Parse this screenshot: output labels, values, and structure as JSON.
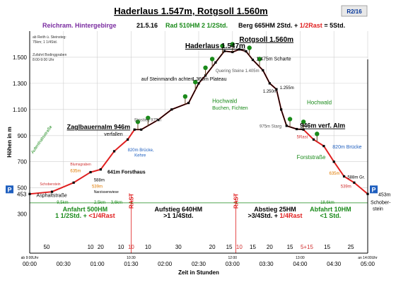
{
  "header": {
    "title": "Haderlaus 1.547m, Rotgsoll 1.560m",
    "badge": "R2/16",
    "sub_left": "Reichram. Hintergebirge",
    "sub_date": "21.5.16",
    "sub_rad": "Rad 510HM 2 1/2Std.",
    "sub_berg": "Berg 665HM  2Std. + ",
    "sub_rast": "1/2Rast",
    "sub_total": " = 5Std.",
    "note1": "ab Reith ü. Steinsteg:",
    "note2": "75km; 1 1/4Std.",
    "note3": "Zufahrt Bodinggraben",
    "note4": "8:00-9:00 Uhr"
  },
  "chart_data": {
    "type": "area",
    "ylabel": "Höhen in m",
    "xlabel": "Zeit in Stunden",
    "ylim": [
      0,
      1700
    ],
    "xlim": [
      0,
      5
    ],
    "grid": true,
    "y_ticks": [
      "300",
      "500",
      "700",
      "900",
      "1.100",
      "1.300",
      "1.500"
    ],
    "y_tick_values": [
      300,
      500,
      700,
      900,
      1100,
      1300,
      1500
    ],
    "x_ticks": [
      "00:00",
      "00:30",
      "01:00",
      "01:30",
      "02:00",
      "02:30",
      "03:00",
      "03:30",
      "04:00",
      "04:30",
      "05:00"
    ],
    "profile": [
      {
        "t": 0.0,
        "h": 453
      },
      {
        "t": 0.33,
        "h": 470
      },
      {
        "t": 0.65,
        "h": 540
      },
      {
        "t": 0.9,
        "h": 620
      },
      {
        "t": 1.05,
        "h": 641
      },
      {
        "t": 1.25,
        "h": 780
      },
      {
        "t": 1.45,
        "h": 870
      },
      {
        "t": 1.55,
        "h": 946
      },
      {
        "t": 1.65,
        "h": 946
      },
      {
        "t": 1.9,
        "h": 1020
      },
      {
        "t": 2.1,
        "h": 1100
      },
      {
        "t": 2.35,
        "h": 1150
      },
      {
        "t": 2.5,
        "h": 1300
      },
      {
        "t": 2.6,
        "h": 1360
      },
      {
        "t": 2.75,
        "h": 1460
      },
      {
        "t": 2.88,
        "h": 1547
      },
      {
        "t": 3.0,
        "h": 1540
      },
      {
        "t": 3.1,
        "h": 1560
      },
      {
        "t": 3.2,
        "h": 1545
      },
      {
        "t": 3.3,
        "h": 1480
      },
      {
        "t": 3.45,
        "h": 1400
      },
      {
        "t": 3.55,
        "h": 1300
      },
      {
        "t": 3.65,
        "h": 1255
      },
      {
        "t": 3.72,
        "h": 1100
      },
      {
        "t": 3.8,
        "h": 975
      },
      {
        "t": 3.95,
        "h": 950
      },
      {
        "t": 4.05,
        "h": 946
      },
      {
        "t": 4.2,
        "h": 870
      },
      {
        "t": 4.35,
        "h": 820
      },
      {
        "t": 4.5,
        "h": 700
      },
      {
        "t": 4.65,
        "h": 588
      },
      {
        "t": 4.8,
        "h": 540
      },
      {
        "t": 5.0,
        "h": 453
      }
    ],
    "annotations": [
      {
        "t": 2.3,
        "h": 1570,
        "text": "Haderlaus 1.547m",
        "color": "#000000",
        "size": 10,
        "bold": true,
        "underline": true
      },
      {
        "t": 3.1,
        "h": 1620,
        "text": "Rotgsoll 1.560m",
        "color": "#000000",
        "size": 10,
        "bold": true,
        "underline": true
      },
      {
        "t": 3.35,
        "h": 1475,
        "text": "1.475m Scharte",
        "color": "#000000",
        "size": 7
      },
      {
        "t": 2.75,
        "h": 1385,
        "text": "Quering Steine 1.405m",
        "color": "#555555",
        "size": 6
      },
      {
        "t": 2.4,
        "h": 1320,
        "text": "1.360m Plateau",
        "color": "#000000",
        "size": 7
      },
      {
        "t": 1.65,
        "h": 1320,
        "text": "auf Steinmandln achten",
        "color": "#000000",
        "size": 7
      },
      {
        "t": 3.7,
        "h": 1255,
        "text": "1.255m",
        "color": "#000000",
        "size": 6
      },
      {
        "t": 3.45,
        "h": 1230,
        "text": "1.250m",
        "color": "#000000",
        "size": 6
      },
      {
        "t": 2.7,
        "h": 1150,
        "text": "Hochwald",
        "color": "#1a8a1a",
        "size": 8
      },
      {
        "t": 2.7,
        "h": 1100,
        "text": "Buchen, Fichten",
        "color": "#1a8a1a",
        "size": 7
      },
      {
        "t": 4.1,
        "h": 1140,
        "text": "Hochwald",
        "color": "#1a8a1a",
        "size": 8
      },
      {
        "t": 1.55,
        "h": 1010,
        "text": "Einstieg 975m",
        "color": "#555555",
        "size": 6
      },
      {
        "t": 3.4,
        "h": 960,
        "text": "975m Starg",
        "color": "#555555",
        "size": 6
      },
      {
        "t": 0.55,
        "h": 950,
        "text": "Zaglbauernalm 946m",
        "color": "#000000",
        "size": 9,
        "bold": true,
        "underline": true
      },
      {
        "t": 1.1,
        "h": 900,
        "text": "verfallen",
        "color": "#000000",
        "size": 7
      },
      {
        "t": 4.0,
        "h": 960,
        "text": "946m verf. Alm",
        "color": "#000000",
        "size": 9,
        "bold": true,
        "underline": true
      },
      {
        "t": 1.45,
        "h": 780,
        "text": "820m Brücke,",
        "color": "#1f5fbf",
        "size": 6
      },
      {
        "t": 1.55,
        "h": 740,
        "text": "Kehre",
        "color": "#1f5fbf",
        "size": 6
      },
      {
        "t": 4.48,
        "h": 800,
        "text": "820m Brücke",
        "color": "#1f5fbf",
        "size": 7
      },
      {
        "t": 1.15,
        "h": 610,
        "text": "641m Forsthaus",
        "color": "#000000",
        "size": 7,
        "bold": true
      },
      {
        "t": 3.95,
        "h": 720,
        "text": "Forststraße",
        "color": "#1a8a1a",
        "size": 8
      },
      {
        "t": 4.7,
        "h": 570,
        "text": "588m Gr.",
        "color": "#000000",
        "size": 6
      },
      {
        "t": 4.43,
        "h": 600,
        "text": "635m",
        "color": "#e07a00",
        "size": 6
      },
      {
        "t": 0.05,
        "h": 760,
        "text": "Aufenthaltsstraße",
        "color": "#1a8a1a",
        "size": 6,
        "rot": -55
      },
      {
        "t": 0.6,
        "h": 670,
        "text": "Blumsgraben",
        "color": "#d03030",
        "size": 5
      },
      {
        "t": 0.6,
        "h": 620,
        "text": "635m",
        "color": "#e07a00",
        "size": 6
      },
      {
        "t": 0.95,
        "h": 550,
        "text": "588m",
        "color": "#000000",
        "size": 6
      },
      {
        "t": 0.92,
        "h": 500,
        "text": "539m",
        "color": "#e07a00",
        "size": 6
      },
      {
        "t": 0.95,
        "h": 460,
        "text": "Narzissenwiese",
        "color": "#000000",
        "size": 5
      },
      {
        "t": 0.15,
        "h": 520,
        "text": "Schoberstein",
        "color": "#d03030",
        "size": 5
      },
      {
        "t": 0.1,
        "h": 430,
        "text": "Asphaltstraße",
        "color": "#000000",
        "size": 7
      },
      {
        "t": 0.4,
        "h": 380,
        "text": "9,5km",
        "color": "#1a8a1a",
        "size": 6
      },
      {
        "t": 0.95,
        "h": 380,
        "text": "2,5km",
        "color": "#1a8a1a",
        "size": 6
      },
      {
        "t": 1.2,
        "h": 380,
        "text": "3,6km",
        "color": "#1a8a1a",
        "size": 6
      },
      {
        "t": 4.3,
        "h": 380,
        "text": "18,6km",
        "color": "#1a8a1a",
        "size": 6
      },
      {
        "t": 3.95,
        "h": 880,
        "text": "5Rast",
        "color": "#d03030",
        "size": 6
      },
      {
        "t": 4.6,
        "h": 500,
        "text": "539m",
        "color": "#d03030",
        "size": 6
      }
    ],
    "rast_labels": [
      {
        "t": 1.5,
        "text": "RAST"
      },
      {
        "t": 3.05,
        "text": "RAST"
      }
    ],
    "left_elev": "453",
    "right_elev": "453m",
    "right_label": "Schober-",
    "right_label2": "stein",
    "summary": [
      {
        "t": 0.82,
        "line1": "Anfahrt 500HM",
        "line2a": "1 1/2Std. + ",
        "line2b": "<1/4Rast",
        "color": "#1a8a1a"
      },
      {
        "t": 2.2,
        "line1": "Aufstieg 640HM",
        "line2a": ">1 1/4Std.",
        "line2b": "",
        "color": "#000000"
      },
      {
        "t": 3.63,
        "line1": "Abstieg 25HM",
        "line2a": ">3/4Std. + ",
        "line2b": "1/4Rast",
        "color": "#000000"
      },
      {
        "t": 4.45,
        "line1": "Abfahrt 10HM",
        "line2a": "<1 Std.",
        "line2b": "",
        "color": "#1a8a1a"
      }
    ],
    "segment_minutes": [
      {
        "t": 0.25,
        "text": "50",
        "color": "#000000"
      },
      {
        "t": 0.9,
        "text": "10",
        "color": "#000000"
      },
      {
        "t": 1.05,
        "text": "20",
        "color": "#000000"
      },
      {
        "t": 1.35,
        "text": "10",
        "color": "#000000"
      },
      {
        "t": 1.5,
        "text": "10",
        "color": "#d03030"
      },
      {
        "t": 1.75,
        "text": "10",
        "color": "#000000"
      },
      {
        "t": 2.2,
        "text": "30",
        "color": "#000000"
      },
      {
        "t": 2.7,
        "text": "20",
        "color": "#000000"
      },
      {
        "t": 2.95,
        "text": "15",
        "color": "#000000"
      },
      {
        "t": 3.1,
        "text": "10",
        "color": "#d03030"
      },
      {
        "t": 3.3,
        "text": "15",
        "color": "#000000"
      },
      {
        "t": 3.55,
        "text": "20",
        "color": "#000000"
      },
      {
        "t": 3.85,
        "text": "15",
        "color": "#000000"
      },
      {
        "t": 4.1,
        "text": "5+15",
        "color": "#d03030"
      },
      {
        "t": 4.4,
        "text": "15",
        "color": "#000000"
      },
      {
        "t": 4.75,
        "text": "25",
        "color": "#000000"
      }
    ],
    "time_stamps": [
      {
        "t": 0.0,
        "text": "ab 9:00Uhr"
      },
      {
        "t": 1.5,
        "text": "10:30"
      },
      {
        "t": 3.0,
        "text": "12:00"
      },
      {
        "t": 4.0,
        "text": "13:00"
      },
      {
        "t": 5.0,
        "text": "an 14:00Uhr"
      }
    ],
    "trees": [
      2.3,
      2.45,
      2.6,
      2.7,
      2.85,
      3.0,
      3.25,
      3.4,
      3.85,
      4.05,
      4.25,
      1.6,
      1.75
    ],
    "colors": {
      "fill": "#ffffff",
      "ground": "#d94040",
      "line": "#e02020",
      "grid": "#cfcfcf",
      "accent": "#1a6a1a",
      "rast": "#e02020"
    }
  }
}
